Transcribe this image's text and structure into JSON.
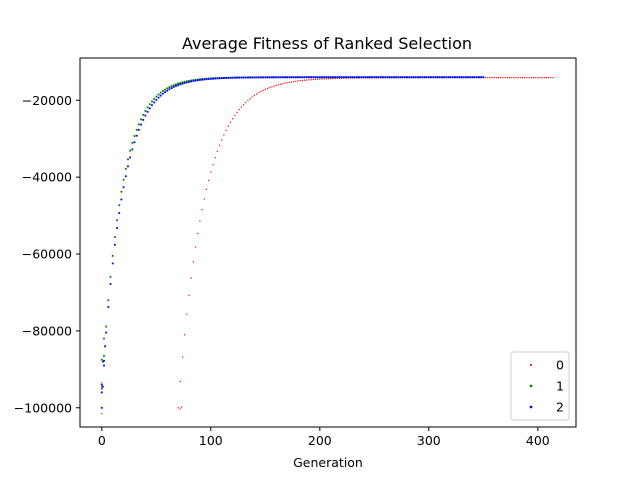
{
  "chart_data": {
    "type": "scatter",
    "title": "Average Fitness of Ranked Selection",
    "xlabel": "Generation",
    "ylabel": "",
    "xlim": [
      -20,
      435
    ],
    "ylim": [
      -105000,
      -9000
    ],
    "xticks": [
      0,
      100,
      200,
      300,
      400
    ],
    "yticks": [
      -100000,
      -80000,
      -60000,
      -40000,
      -20000
    ],
    "ytick_labels": [
      "−100000",
      "−80000",
      "−60000",
      "−40000",
      "−20000"
    ],
    "grid": false,
    "legend_position": "lower right",
    "series": [
      {
        "name": "0",
        "color": "#ff0000",
        "marker_size": 1.2,
        "curve": {
          "x0": 70,
          "x1": 415,
          "y_start": -100000,
          "y_end": -14100,
          "tau": 24,
          "step": 2
        },
        "points": [
          [
            0,
            -101500
          ],
          [
            0,
            -94500
          ],
          [
            0,
            -93500
          ],
          [
            72,
            -100300
          ],
          [
            73,
            -99800
          ]
        ]
      },
      {
        "name": "1",
        "color": "#008000",
        "marker_size": 1.8,
        "curve": {
          "x0": 0,
          "x1": 350,
          "y_start": -95000,
          "y_end": -14000,
          "tau": 18,
          "step": 2
        },
        "points": [
          [
            0,
            -87500
          ],
          [
            1,
            -88000
          ],
          [
            2,
            -82000
          ]
        ]
      },
      {
        "name": "2",
        "color": "#0000ff",
        "marker_size": 1.8,
        "curve": {
          "x0": 0,
          "x1": 350,
          "y_start": -96000,
          "y_end": -14000,
          "tau": 19,
          "step": 2
        },
        "points": [
          [
            0,
            -100000
          ],
          [
            0,
            -94000
          ],
          [
            1,
            -94500
          ],
          [
            2,
            -89000
          ],
          [
            3,
            -84000
          ]
        ]
      }
    ]
  }
}
